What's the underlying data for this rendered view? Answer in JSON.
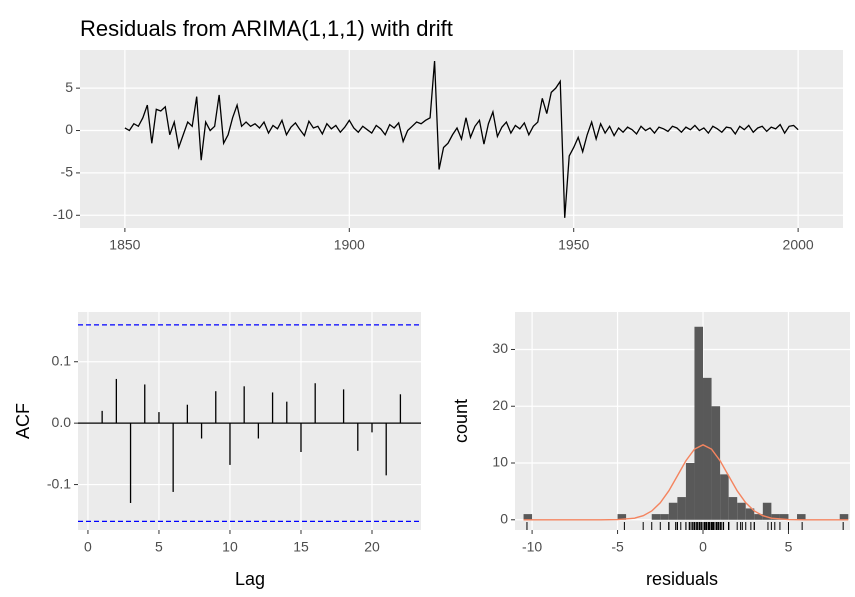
{
  "chart_data": [
    {
      "type": "line",
      "title": "Residuals from ARIMA(1,1,1) with drift",
      "color": "#000000",
      "rug_color": "#000000",
      "x": [
        1850,
        1851,
        1852,
        1853,
        1854,
        1855,
        1856,
        1857,
        1858,
        1859,
        1860,
        1861,
        1862,
        1863,
        1864,
        1865,
        1866,
        1867,
        1868,
        1869,
        1870,
        1871,
        1872,
        1873,
        1874,
        1875,
        1876,
        1877,
        1878,
        1879,
        1880,
        1881,
        1882,
        1883,
        1884,
        1885,
        1886,
        1887,
        1888,
        1889,
        1890,
        1891,
        1892,
        1893,
        1894,
        1895,
        1896,
        1897,
        1898,
        1899,
        1900,
        1901,
        1902,
        1903,
        1904,
        1905,
        1906,
        1907,
        1908,
        1909,
        1910,
        1911,
        1912,
        1913,
        1914,
        1915,
        1916,
        1917,
        1918,
        1919,
        1920,
        1921,
        1922,
        1923,
        1924,
        1925,
        1926,
        1927,
        1928,
        1929,
        1930,
        1931,
        1932,
        1933,
        1934,
        1935,
        1936,
        1937,
        1938,
        1939,
        1940,
        1941,
        1942,
        1943,
        1944,
        1945,
        1946,
        1947,
        1948,
        1949,
        1950,
        1951,
        1952,
        1953,
        1954,
        1955,
        1956,
        1957,
        1958,
        1959,
        1960,
        1961,
        1962,
        1963,
        1964,
        1965,
        1966,
        1967,
        1968,
        1969,
        1970,
        1971,
        1972,
        1973,
        1974,
        1975,
        1976,
        1977,
        1978,
        1979,
        1980,
        1981,
        1982,
        1983,
        1984,
        1985,
        1986,
        1987,
        1988,
        1989,
        1990,
        1991,
        1992,
        1993,
        1994,
        1995,
        1996,
        1997,
        1998,
        1999,
        2000
      ],
      "values": [
        0.3,
        0.0,
        0.8,
        0.5,
        1.5,
        3.0,
        -1.5,
        2.5,
        2.3,
        2.8,
        -0.5,
        1.0,
        -2.0,
        -0.5,
        1.0,
        0.5,
        4.0,
        -3.5,
        1.0,
        0.0,
        0.5,
        4.2,
        -1.5,
        -0.5,
        1.5,
        3.0,
        0.5,
        1.0,
        0.5,
        0.8,
        0.3,
        1.0,
        -0.3,
        0.6,
        0.2,
        1.2,
        -0.5,
        0.4,
        0.9,
        0.1,
        -0.6,
        1.1,
        0.3,
        0.5,
        -0.4,
        0.8,
        0.2,
        0.6,
        -0.2,
        0.4,
        1.2,
        0.3,
        -0.2,
        0.5,
        0.1,
        -0.3,
        0.6,
        0.2,
        -0.5,
        0.7,
        0.3,
        0.9,
        -1.3,
        0.0,
        0.5,
        1.0,
        0.8,
        1.2,
        1.5,
        8.2,
        -4.6,
        -2.0,
        -1.5,
        -0.5,
        0.3,
        -1.0,
        1.5,
        -0.8,
        0.5,
        1.2,
        -1.6,
        0.8,
        2.2,
        -0.7,
        0.4,
        1.0,
        -0.3,
        0.6,
        0.2,
        0.9,
        -0.5,
        0.5,
        1.0,
        3.8,
        2.0,
        4.5,
        5.0,
        5.8,
        -10.3,
        -3.0,
        -2.0,
        -0.8,
        -2.5,
        -0.5,
        1.0,
        -1.0,
        0.8,
        -0.3,
        0.5,
        -0.6,
        0.3,
        -0.2,
        0.4,
        0.1,
        -0.4,
        0.5,
        0.0,
        0.3,
        -0.3,
        0.4,
        0.2,
        -0.1,
        0.5,
        0.3,
        -0.2,
        0.4,
        0.1,
        0.6,
        0.0,
        0.3,
        -0.3,
        0.5,
        0.2,
        -0.2,
        0.4,
        0.3,
        -0.4,
        0.5,
        0.1,
        0.6,
        -0.2,
        0.3,
        0.5,
        -0.1,
        0.4,
        0.2,
        0.7,
        -0.3,
        0.5,
        0.6,
        0.1
      ],
      "xlim": [
        1840,
        2010
      ],
      "xticks": [
        1850,
        1900,
        1950,
        2000
      ],
      "ylim": [
        -11.5,
        9.5
      ],
      "yticks": [
        -10,
        -5,
        0,
        5
      ],
      "grid": true
    },
    {
      "type": "acf",
      "x_label": "Lag",
      "y_label": "ACF",
      "color": "#000000",
      "x": [
        1,
        2,
        3,
        4,
        5,
        6,
        7,
        8,
        9,
        10,
        11,
        12,
        13,
        14,
        15,
        16,
        17,
        18,
        19,
        20,
        21,
        22
      ],
      "values": [
        0.02,
        0.072,
        -0.13,
        0.063,
        0.018,
        -0.112,
        0.03,
        -0.025,
        0.052,
        -0.068,
        0.06,
        -0.025,
        0.05,
        0.035,
        -0.047,
        0.065,
        0.001,
        0.055,
        -0.045,
        -0.015,
        -0.085,
        0.047
      ],
      "ci_lines": [
        0.16,
        -0.16
      ],
      "ci_color": "#0000ff",
      "xlim": [
        -0.7,
        23.45
      ],
      "xticks": [
        0,
        5,
        10,
        15,
        20
      ],
      "ylim": [
        -0.174,
        0.181
      ],
      "yticks": [
        -0.1,
        {
          "value": 0,
          "label": "0.0"
        },
        0.1
      ],
      "grid": true
    },
    {
      "type": "histogram",
      "x_label": "residuals",
      "y_label": "count",
      "color": "#595959",
      "bins": [
        -10.5,
        -10,
        -9.5,
        -9,
        -8.5,
        -8,
        -7.5,
        -7,
        -6.5,
        -6,
        -5.5,
        -5,
        -4.5,
        -4,
        -3.5,
        -3,
        -2.5,
        -2,
        -1.5,
        -1,
        -0.5,
        0,
        0.5,
        1,
        1.5,
        2,
        2.5,
        3,
        3.5,
        4,
        4.5,
        5,
        5.5,
        6,
        6.5,
        7,
        7.5,
        8,
        8.5
      ],
      "values": [
        1,
        0,
        0,
        0,
        0,
        0,
        0,
        0,
        0,
        0,
        0,
        1,
        0,
        0,
        0,
        1,
        1,
        3,
        4,
        10,
        34,
        25,
        20,
        8,
        4,
        3,
        2,
        1,
        3,
        1,
        1,
        0,
        1,
        0,
        0,
        0,
        0,
        1
      ],
      "curve": {
        "color": "#f4845f",
        "x": [
          -10.5,
          -8,
          -6,
          -5,
          -4,
          -3.5,
          -3,
          -2.5,
          -2,
          -1.5,
          -1,
          -0.5,
          0,
          0.5,
          1,
          1.5,
          2,
          2.5,
          3,
          3.5,
          4,
          5,
          6,
          8,
          8.5
        ],
        "values": [
          0,
          0,
          0,
          0.03,
          0.29,
          0.72,
          1.55,
          2.99,
          5.1,
          7.73,
          10.4,
          12.44,
          13.2,
          12.44,
          10.4,
          7.73,
          5.1,
          2.99,
          1.55,
          0.72,
          0.29,
          0.03,
          0,
          0,
          0
        ]
      },
      "xlim": [
        -11,
        8.6
      ],
      "xticks": [
        -10,
        -5,
        0,
        5
      ],
      "ylim": [
        -1.8,
        36.6
      ],
      "yticks": [
        0,
        10,
        20,
        30
      ],
      "grid": true
    }
  ]
}
